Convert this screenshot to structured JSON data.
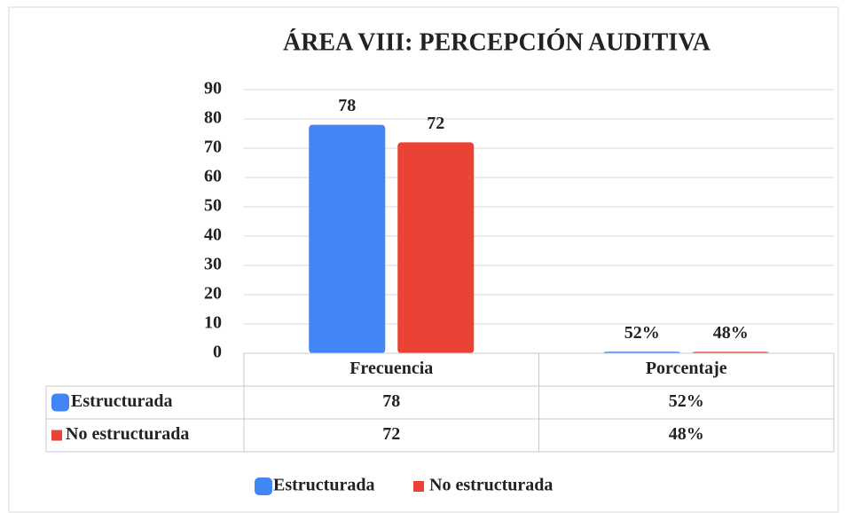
{
  "chart_data": {
    "type": "bar",
    "title": "ÁREA VIII: PERCEPCIÓN AUDITIVA",
    "categories": [
      "Frecuencia",
      "Porcentaje"
    ],
    "series": [
      {
        "name": "Estructurada",
        "color": "#4285f4",
        "values": [
          78,
          0.52
        ],
        "value_labels": [
          "78",
          "52%"
        ]
      },
      {
        "name": "No estructurada",
        "color": "#ea4335",
        "values": [
          72,
          0.48
        ],
        "value_labels": [
          "72",
          "48%"
        ]
      }
    ],
    "ylim": [
      0,
      90
    ],
    "yticks": [
      0,
      10,
      20,
      30,
      40,
      50,
      60,
      70,
      80,
      90
    ],
    "grid": true,
    "legend": "bottom",
    "data_table": true
  }
}
